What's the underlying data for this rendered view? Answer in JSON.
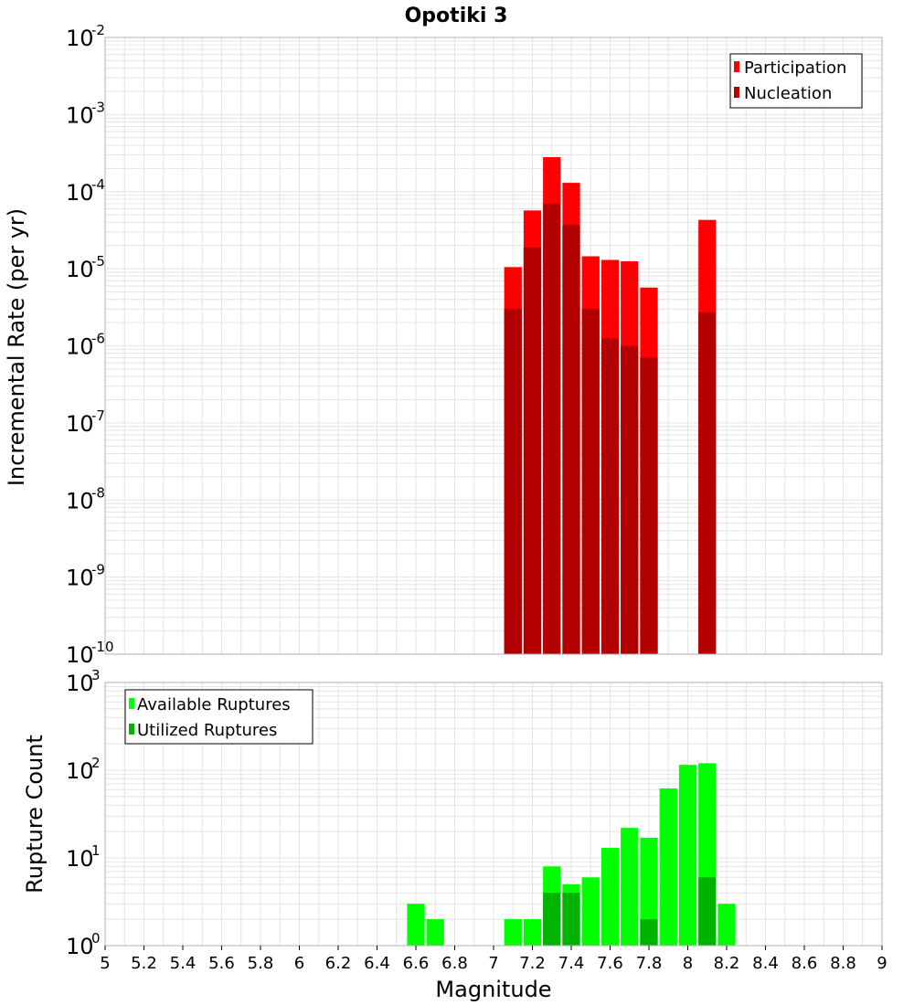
{
  "title": "Opotiki 3",
  "colors": {
    "participation": "#ff0000",
    "nucleation": "#b30000",
    "available": "#00ff00",
    "utilized": "#00b300",
    "grid": "#e4e4e4",
    "frame": "#b0b0b0"
  },
  "chart_data": [
    {
      "type": "bar",
      "scale": "log",
      "ylabel": "Incremental Rate (per yr)",
      "ylim_exponents": [
        -10,
        -2
      ],
      "legend_position": "top-right",
      "grid": true,
      "x": [
        7.1,
        7.2,
        7.3,
        7.4,
        7.5,
        7.6,
        7.7,
        7.8,
        8.1
      ],
      "series": [
        {
          "name": "Participation",
          "values": [
            1.05e-05,
            5.7e-05,
            0.00028,
            0.00013,
            1.45e-05,
            1.3e-05,
            1.25e-05,
            5.7e-06,
            4.3e-05
          ]
        },
        {
          "name": "Nucleation",
          "values": [
            3e-06,
            1.9e-05,
            7e-05,
            3.7e-05,
            3e-06,
            1.25e-06,
            1e-06,
            7e-07,
            2.7e-06
          ]
        }
      ]
    },
    {
      "type": "bar",
      "scale": "log",
      "xlabel": "Magnitude",
      "ylabel": "Rupture Count",
      "ylim_exponents": [
        0,
        3
      ],
      "xlim": [
        5,
        9
      ],
      "xticks": [
        "5",
        "5.2",
        "5.4",
        "5.6",
        "5.8",
        "6",
        "6.2",
        "6.4",
        "6.6",
        "6.8",
        "7",
        "7.2",
        "7.4",
        "7.6",
        "7.8",
        "8",
        "8.2",
        "8.4",
        "8.6",
        "8.8",
        "9"
      ],
      "legend_position": "top-left",
      "grid": true,
      "x": [
        6.6,
        6.7,
        6.9,
        7.1,
        7.2,
        7.3,
        7.4,
        7.5,
        7.6,
        7.7,
        7.8,
        7.9,
        8.0,
        8.1,
        8.2
      ],
      "series": [
        {
          "name": "Available Ruptures",
          "values": [
            3,
            2,
            1,
            2,
            2,
            8,
            5,
            6,
            13,
            22,
            17,
            62,
            115,
            120,
            3
          ]
        },
        {
          "name": "Utilized Ruptures",
          "values": [
            0,
            0,
            0,
            1,
            1,
            4,
            4,
            1,
            1,
            1,
            2,
            0,
            0,
            6,
            0
          ]
        }
      ]
    }
  ]
}
